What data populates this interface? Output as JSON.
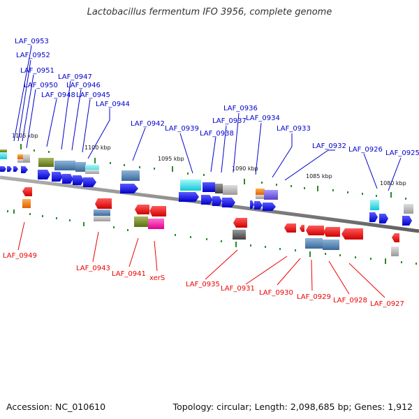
{
  "title": "Lactobacillus fermentum IFO 3956, complete genome",
  "footer": {
    "accession": "Accession: NC_010610",
    "stats": "Topology: circular; Length: 2,098,685 bp; Genes: 1,912"
  },
  "colors": {
    "forward_label": "#0000cc",
    "reverse_label": "#ee0000",
    "forward_arrow": "#1a1aee",
    "reverse_arrow": "#ee1111",
    "backbone": "#8a8a8a",
    "tick": "#2a8a2a"
  },
  "scale_ticks": [
    "1105 kbp",
    "1100 kbp",
    "1095 kbp",
    "1090 kbp",
    "1085 kbp",
    "1080 kbp"
  ],
  "forward_genes": [
    "LAF_0953",
    "LAF_0952",
    "LAF_0951",
    "LAF_0950",
    "LAF_0948",
    "LAF_0947",
    "LAF_0946",
    "LAF_0945",
    "LAF_0944",
    "LAF_0942",
    "LAF_0939",
    "LAF_0938",
    "LAF_0937",
    "LAF_0936",
    "LAF_0934",
    "LAF_0933",
    "LAF_0932",
    "LAF_0926",
    "LAF_0925"
  ],
  "reverse_genes": [
    "LAF_0949",
    "LAF_0943",
    "LAF_0941",
    "xerS",
    "LAF_0935",
    "LAF_0931",
    "LAF_0930",
    "LAF_0929",
    "LAF_0928",
    "LAF_0927"
  ]
}
